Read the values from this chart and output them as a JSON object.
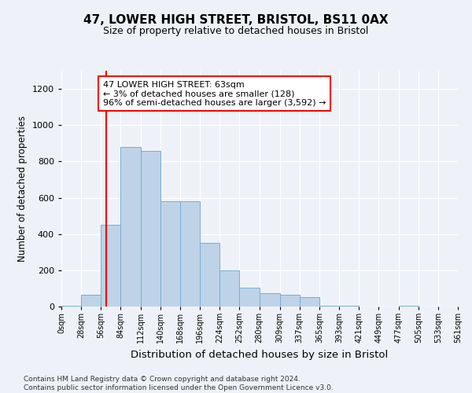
{
  "title": "47, LOWER HIGH STREET, BRISTOL, BS11 0AX",
  "subtitle": "Size of property relative to detached houses in Bristol",
  "xlabel": "Distribution of detached houses by size in Bristol",
  "ylabel": "Number of detached properties",
  "bar_color": "#bed3e8",
  "bar_edge_color": "#7aadd4",
  "background_color": "#eef2f8",
  "annotation_text": "47 LOWER HIGH STREET: 63sqm\n← 3% of detached houses are smaller (128)\n96% of semi-detached houses are larger (3,592) →",
  "annotation_box_color": "white",
  "annotation_box_edge_color": "red",
  "property_line_x": 63,
  "property_line_color": "red",
  "bin_edges": [
    0,
    28,
    56,
    84,
    112,
    140,
    168,
    196,
    224,
    252,
    280,
    309,
    337,
    365,
    393,
    421,
    449,
    477,
    505,
    533,
    561
  ],
  "bar_heights": [
    5,
    65,
    450,
    880,
    860,
    580,
    580,
    350,
    200,
    105,
    75,
    65,
    50,
    5,
    5,
    0,
    0,
    5,
    0,
    0
  ],
  "ylim": [
    0,
    1300
  ],
  "yticks": [
    0,
    200,
    400,
    600,
    800,
    1000,
    1200
  ],
  "tick_labels": [
    "0sqm",
    "28sqm",
    "56sqm",
    "84sqm",
    "112sqm",
    "140sqm",
    "168sqm",
    "196sqm",
    "224sqm",
    "252sqm",
    "280sqm",
    "309sqm",
    "337sqm",
    "365sqm",
    "393sqm",
    "421sqm",
    "449sqm",
    "477sqm",
    "505sqm",
    "533sqm",
    "561sqm"
  ],
  "footer_text": "Contains HM Land Registry data © Crown copyright and database right 2024.\nContains public sector information licensed under the Open Government Licence v3.0.",
  "figsize": [
    6.0,
    5.0
  ],
  "dpi": 100
}
